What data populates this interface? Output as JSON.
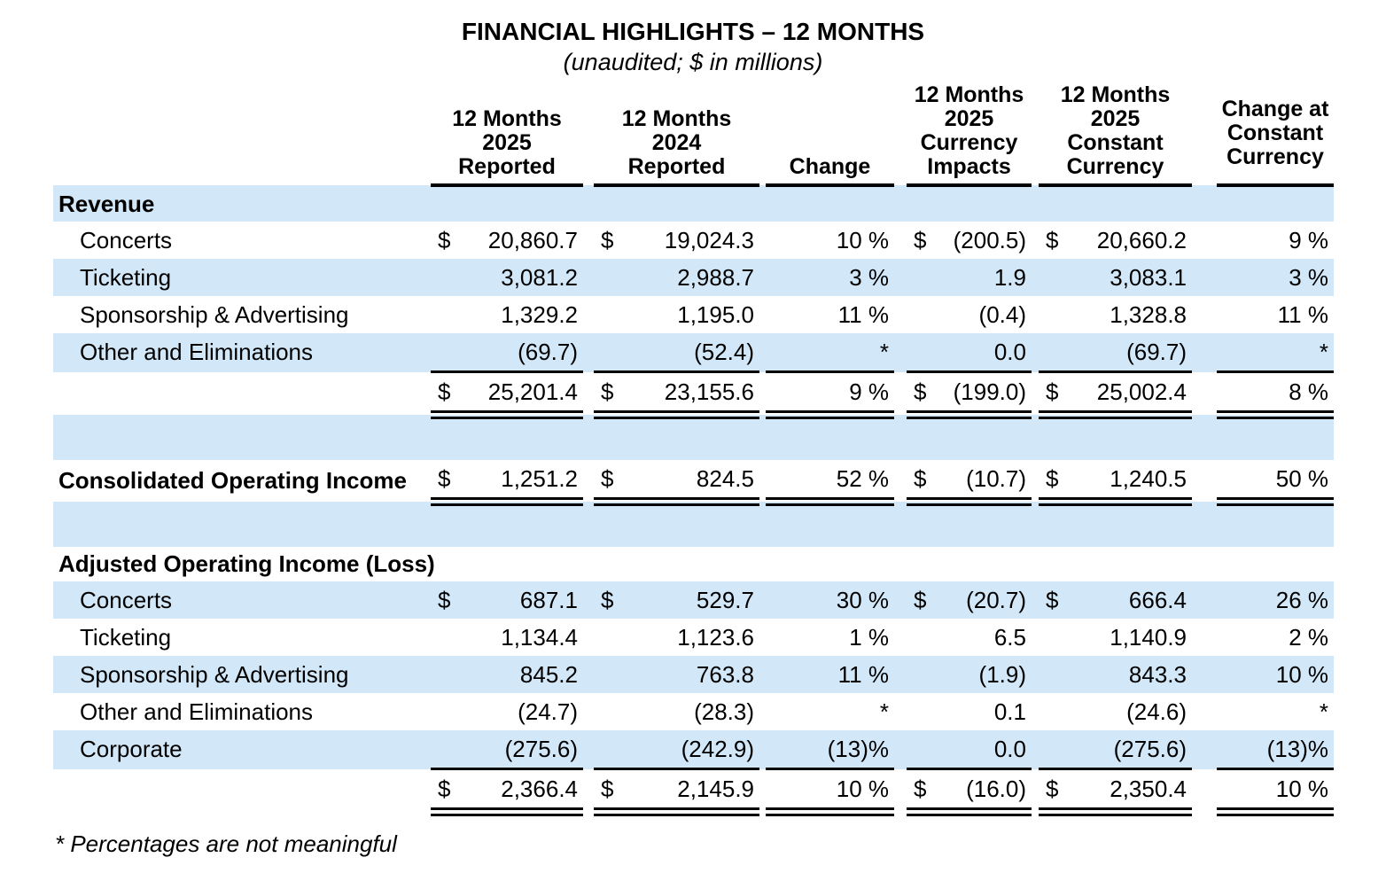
{
  "page": {
    "title": "FINANCIAL HIGHLIGHTS – 12 MONTHS",
    "subtitle": "(unaudited; $ in millions)",
    "footnote": "* Percentages are not meaningful"
  },
  "colors": {
    "row_highlight": "#d2e8f9",
    "text": "#000000",
    "background": "#ffffff"
  },
  "table": {
    "columns": [
      {
        "id": "label",
        "lines": []
      },
      {
        "id": "months-2025-reported",
        "lines": [
          "12 Months",
          "2025",
          "Reported"
        ]
      },
      {
        "id": "months-2024-reported",
        "lines": [
          "12 Months",
          "2024",
          "Reported"
        ]
      },
      {
        "id": "change",
        "lines": [
          "Change"
        ]
      },
      {
        "id": "currency-impacts",
        "lines": [
          "12 Months",
          "2025",
          "Currency",
          "Impacts"
        ]
      },
      {
        "id": "constant-currency",
        "lines": [
          "12 Months",
          "2025",
          "Constant",
          "Currency"
        ]
      },
      {
        "id": "change-constant-currency",
        "lines": [
          "Change at",
          "Constant",
          "Currency"
        ]
      }
    ],
    "rows": [
      {
        "type": "section",
        "label": "Revenue",
        "shaded": true
      },
      {
        "type": "data",
        "label": "Concerts",
        "shaded": false,
        "rule": "none",
        "cells": [
          {
            "d": "$",
            "v": "20,860.7"
          },
          {
            "d": "$",
            "v": "19,024.3"
          },
          {
            "d": "",
            "v": "10 %"
          },
          {
            "d": "$",
            "v": "(200.5)"
          },
          {
            "d": "$",
            "v": "20,660.2"
          },
          {
            "d": "",
            "v": "9 %"
          }
        ]
      },
      {
        "type": "data",
        "label": "Ticketing",
        "shaded": true,
        "rule": "none",
        "cells": [
          {
            "d": "",
            "v": "3,081.2"
          },
          {
            "d": "",
            "v": "2,988.7"
          },
          {
            "d": "",
            "v": "3 %"
          },
          {
            "d": "",
            "v": "1.9"
          },
          {
            "d": "",
            "v": "3,083.1"
          },
          {
            "d": "",
            "v": "3 %"
          }
        ]
      },
      {
        "type": "data",
        "label": "Sponsorship & Advertising",
        "shaded": false,
        "rule": "none",
        "cells": [
          {
            "d": "",
            "v": "1,329.2"
          },
          {
            "d": "",
            "v": "1,195.0"
          },
          {
            "d": "",
            "v": "11 %"
          },
          {
            "d": "",
            "v": "(0.4)"
          },
          {
            "d": "",
            "v": "1,328.8"
          },
          {
            "d": "",
            "v": "11 %"
          }
        ]
      },
      {
        "type": "data",
        "label": "Other and Eliminations",
        "shaded": true,
        "rule": "single",
        "cells": [
          {
            "d": "",
            "v": "(69.7)"
          },
          {
            "d": "",
            "v": "(52.4)"
          },
          {
            "d": "",
            "v": "*"
          },
          {
            "d": "",
            "v": "0.0"
          },
          {
            "d": "",
            "v": "(69.7)"
          },
          {
            "d": "",
            "v": "*"
          }
        ]
      },
      {
        "type": "data",
        "label": "",
        "shaded": false,
        "rule": "double",
        "cells": [
          {
            "d": "$",
            "v": "25,201.4"
          },
          {
            "d": "$",
            "v": "23,155.6"
          },
          {
            "d": "",
            "v": "9 %"
          },
          {
            "d": "$",
            "v": "(199.0)"
          },
          {
            "d": "$",
            "v": "25,002.4"
          },
          {
            "d": "",
            "v": "8 %"
          }
        ]
      },
      {
        "type": "spacer",
        "shaded": true
      },
      {
        "type": "data",
        "label": "Consolidated Operating Income",
        "bold": true,
        "shaded": false,
        "rule": "double",
        "cells": [
          {
            "d": "$",
            "v": "1,251.2"
          },
          {
            "d": "$",
            "v": "824.5"
          },
          {
            "d": "",
            "v": "52 %"
          },
          {
            "d": "$",
            "v": "(10.7)"
          },
          {
            "d": "$",
            "v": "1,240.5"
          },
          {
            "d": "",
            "v": "50 %"
          }
        ]
      },
      {
        "type": "spacer",
        "shaded": true
      },
      {
        "type": "section",
        "label": "Adjusted Operating Income (Loss)",
        "shaded": false
      },
      {
        "type": "data",
        "label": "Concerts",
        "shaded": true,
        "rule": "none",
        "cells": [
          {
            "d": "$",
            "v": "687.1"
          },
          {
            "d": "$",
            "v": "529.7"
          },
          {
            "d": "",
            "v": "30 %"
          },
          {
            "d": "$",
            "v": "(20.7)"
          },
          {
            "d": "$",
            "v": "666.4"
          },
          {
            "d": "",
            "v": "26 %"
          }
        ]
      },
      {
        "type": "data",
        "label": "Ticketing",
        "shaded": false,
        "rule": "none",
        "cells": [
          {
            "d": "",
            "v": "1,134.4"
          },
          {
            "d": "",
            "v": "1,123.6"
          },
          {
            "d": "",
            "v": "1 %"
          },
          {
            "d": "",
            "v": "6.5"
          },
          {
            "d": "",
            "v": "1,140.9"
          },
          {
            "d": "",
            "v": "2 %"
          }
        ]
      },
      {
        "type": "data",
        "label": "Sponsorship & Advertising",
        "shaded": true,
        "rule": "none",
        "cells": [
          {
            "d": "",
            "v": "845.2"
          },
          {
            "d": "",
            "v": "763.8"
          },
          {
            "d": "",
            "v": "11 %"
          },
          {
            "d": "",
            "v": "(1.9)"
          },
          {
            "d": "",
            "v": "843.3"
          },
          {
            "d": "",
            "v": "10 %"
          }
        ]
      },
      {
        "type": "data",
        "label": "Other and Eliminations",
        "shaded": false,
        "rule": "none",
        "cells": [
          {
            "d": "",
            "v": "(24.7)"
          },
          {
            "d": "",
            "v": "(28.3)"
          },
          {
            "d": "",
            "v": "*"
          },
          {
            "d": "",
            "v": "0.1"
          },
          {
            "d": "",
            "v": "(24.6)"
          },
          {
            "d": "",
            "v": "*"
          }
        ]
      },
      {
        "type": "data",
        "label": "Corporate",
        "shaded": true,
        "rule": "single",
        "cells": [
          {
            "d": "",
            "v": "(275.6)"
          },
          {
            "d": "",
            "v": "(242.9)"
          },
          {
            "d": "",
            "v": "(13)%"
          },
          {
            "d": "",
            "v": "0.0"
          },
          {
            "d": "",
            "v": "(275.6)"
          },
          {
            "d": "",
            "v": "(13)%"
          }
        ]
      },
      {
        "type": "data",
        "label": "",
        "shaded": false,
        "rule": "double",
        "cells": [
          {
            "d": "$",
            "v": "2,366.4"
          },
          {
            "d": "$",
            "v": "2,145.9"
          },
          {
            "d": "",
            "v": "10 %"
          },
          {
            "d": "$",
            "v": "(16.0)"
          },
          {
            "d": "$",
            "v": "2,350.4"
          },
          {
            "d": "",
            "v": "10 %"
          }
        ]
      }
    ]
  }
}
